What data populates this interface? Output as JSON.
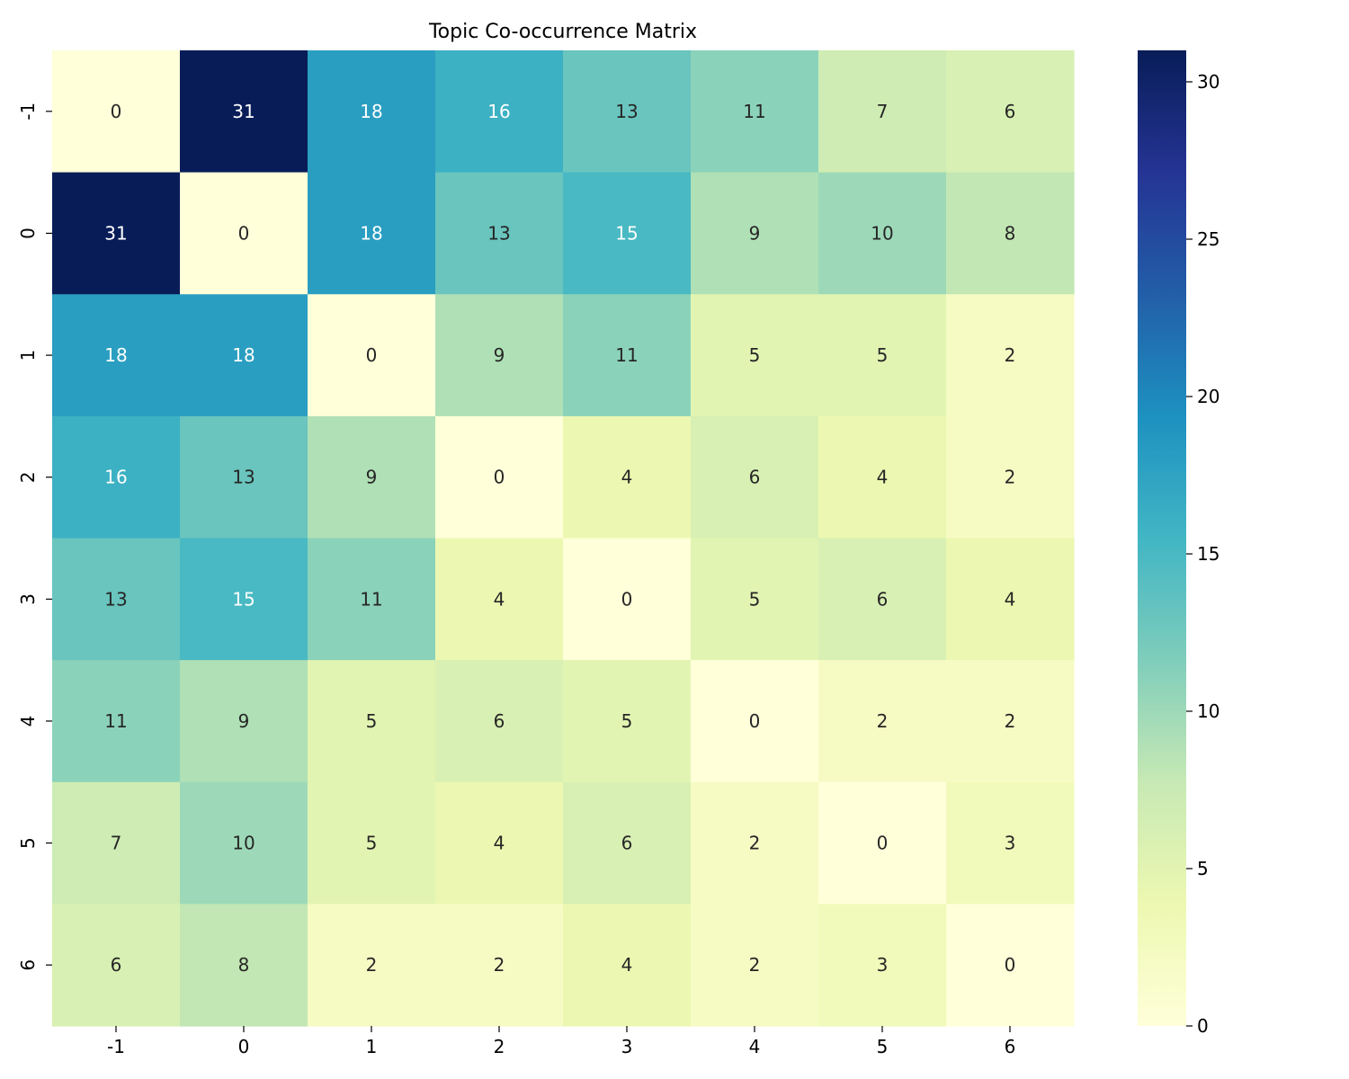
{
  "chart_data": {
    "type": "heatmap",
    "title": "Topic Co-occurrence Matrix",
    "xlabel": "",
    "ylabel": "",
    "x_categories": [
      "-1",
      "0",
      "1",
      "2",
      "3",
      "4",
      "5",
      "6"
    ],
    "y_categories": [
      "-1",
      "0",
      "1",
      "2",
      "3",
      "4",
      "5",
      "6"
    ],
    "values": [
      [
        0,
        31,
        18,
        16,
        13,
        11,
        7,
        6
      ],
      [
        31,
        0,
        18,
        13,
        15,
        9,
        10,
        8
      ],
      [
        18,
        18,
        0,
        9,
        11,
        5,
        5,
        2
      ],
      [
        16,
        13,
        9,
        0,
        4,
        6,
        4,
        2
      ],
      [
        13,
        15,
        11,
        4,
        0,
        5,
        6,
        4
      ],
      [
        11,
        9,
        5,
        6,
        5,
        0,
        2,
        2
      ],
      [
        7,
        10,
        5,
        4,
        6,
        2,
        0,
        3
      ],
      [
        6,
        8,
        2,
        2,
        4,
        2,
        3,
        0
      ]
    ],
    "colorbar": {
      "min": 0,
      "max": 31,
      "ticks": [
        0,
        5,
        10,
        15,
        20,
        25,
        30
      ],
      "colormap": "YlGnBu"
    },
    "annotations": true,
    "grid": false
  }
}
